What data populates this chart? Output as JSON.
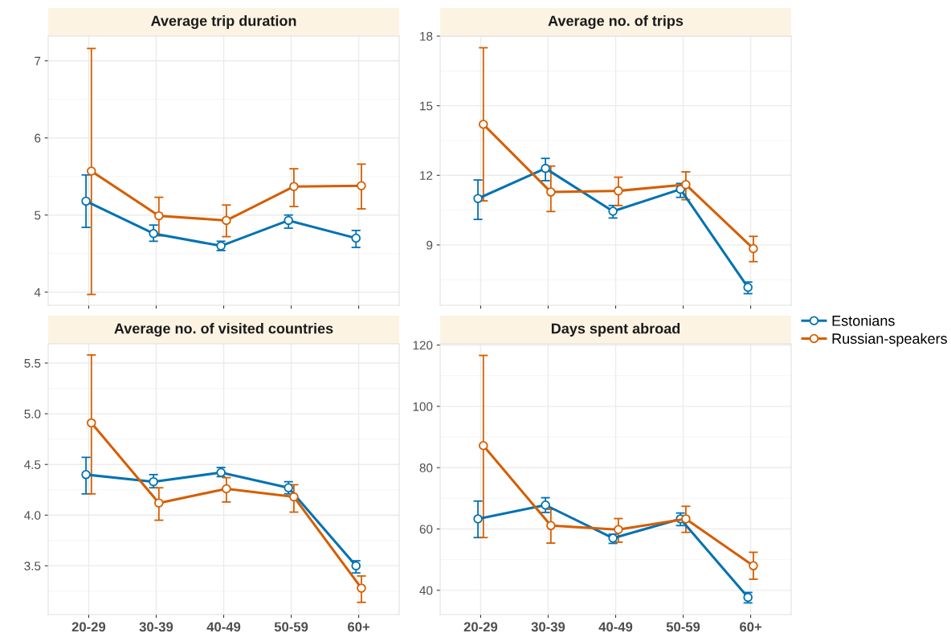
{
  "chart_data": [
    {
      "type": "line",
      "title": "Average trip duration",
      "categories": [
        "20-29",
        "30-39",
        "40-49",
        "50-59",
        "60+"
      ],
      "ylim": [
        3.83,
        7.32
      ],
      "yticks": [
        4,
        5,
        6,
        7
      ],
      "grid": true,
      "marker": "circle",
      "line_style": "solid",
      "tick_labels": "y",
      "legend": "right",
      "series": [
        {
          "name": "Estonians",
          "color": "#0072b2",
          "values": [
            5.18,
            4.76,
            4.6,
            4.93,
            4.7
          ],
          "errors": [
            [
              4.84,
              5.52
            ],
            [
              4.66,
              4.87
            ],
            [
              4.54,
              4.66
            ],
            [
              4.83,
              5.0
            ],
            [
              4.58,
              4.8
            ]
          ]
        },
        {
          "name": "Russian-speakers",
          "color": "#d55e00",
          "values": [
            5.57,
            4.99,
            4.93,
            5.37,
            5.38
          ],
          "errors": [
            [
              3.97,
              7.16
            ],
            [
              4.73,
              5.23
            ],
            [
              4.72,
              5.13
            ],
            [
              5.11,
              5.6
            ],
            [
              5.08,
              5.66
            ]
          ]
        }
      ]
    },
    {
      "type": "line",
      "title": "Average no. of trips",
      "categories": [
        "20-29",
        "30-39",
        "40-49",
        "50-59",
        "60+"
      ],
      "ylim": [
        6.4,
        18.0
      ],
      "yticks": [
        9,
        12,
        15,
        18
      ],
      "grid": true,
      "marker": "circle",
      "line_style": "solid",
      "tick_labels": "y",
      "legend": "right",
      "series": [
        {
          "name": "Estonians",
          "color": "#0072b2",
          "values": [
            11.0,
            12.3,
            10.45,
            11.4,
            7.17
          ],
          "errors": [
            [
              10.1,
              11.8
            ],
            [
              11.77,
              12.73
            ],
            [
              10.16,
              10.7
            ],
            [
              11.05,
              11.65
            ],
            [
              6.9,
              7.4
            ]
          ]
        },
        {
          "name": "Russian-speakers",
          "color": "#d55e00",
          "values": [
            14.2,
            11.28,
            11.33,
            11.6,
            8.84
          ],
          "errors": [
            [
              10.9,
              17.5
            ],
            [
              10.44,
              12.4
            ],
            [
              10.7,
              11.92
            ],
            [
              10.95,
              12.15
            ],
            [
              8.28,
              9.37
            ]
          ]
        }
      ]
    },
    {
      "type": "line",
      "title": "Average no. of visited countries",
      "categories": [
        "20-29",
        "30-39",
        "40-49",
        "50-59",
        "60+"
      ],
      "ylim": [
        3.02,
        5.69
      ],
      "yticks": [
        {
          "value": 3.5,
          "label": "3.5"
        },
        {
          "value": 4.0,
          "label": "4.0"
        },
        {
          "value": 4.5,
          "label": "4.5"
        },
        {
          "value": 5.0,
          "label": "5.0"
        },
        {
          "value": 5.5,
          "label": "5.5"
        }
      ],
      "grid": true,
      "marker": "circle",
      "line_style": "solid",
      "legend": "right",
      "series": [
        {
          "name": "Estonians",
          "color": "#0072b2",
          "values": [
            4.4,
            4.33,
            4.42,
            4.27,
            3.5
          ],
          "errors": [
            [
              4.21,
              4.57
            ],
            [
              4.27,
              4.4
            ],
            [
              4.38,
              4.47
            ],
            [
              4.21,
              4.33
            ],
            [
              3.43,
              3.55
            ]
          ]
        },
        {
          "name": "Russian-speakers",
          "color": "#d55e00",
          "values": [
            4.91,
            4.12,
            4.26,
            4.18,
            3.28
          ],
          "errors": [
            [
              4.21,
              5.58
            ],
            [
              3.95,
              4.27
            ],
            [
              4.13,
              4.37
            ],
            [
              4.03,
              4.3
            ],
            [
              3.14,
              3.4
            ]
          ]
        }
      ]
    },
    {
      "type": "line",
      "title": "Days spent abroad",
      "categories": [
        "20-29",
        "30-39",
        "40-49",
        "50-59",
        "60+"
      ],
      "ylim": [
        32.1,
        120.4
      ],
      "yticks": [
        40,
        60,
        80,
        100,
        120
      ],
      "grid": true,
      "marker": "circle",
      "line_style": "solid",
      "legend": "right",
      "series": [
        {
          "name": "Estonians",
          "color": "#0072b2",
          "values": [
            63.3,
            67.8,
            57.0,
            63.3,
            37.7
          ],
          "errors": [
            [
              57.2,
              69.1
            ],
            [
              65.4,
              70.2
            ],
            [
              55.3,
              58.3
            ],
            [
              61.1,
              65.2
            ],
            [
              35.9,
              39.3
            ]
          ]
        },
        {
          "name": "Russian-speakers",
          "color": "#d55e00",
          "values": [
            87.2,
            61.1,
            59.8,
            63.3,
            48.0
          ],
          "errors": [
            [
              57.2,
              116.6
            ],
            [
              55.4,
              66.4
            ],
            [
              55.7,
              63.4
            ],
            [
              58.9,
              67.4
            ],
            [
              43.6,
              52.4
            ]
          ]
        }
      ]
    }
  ]
}
